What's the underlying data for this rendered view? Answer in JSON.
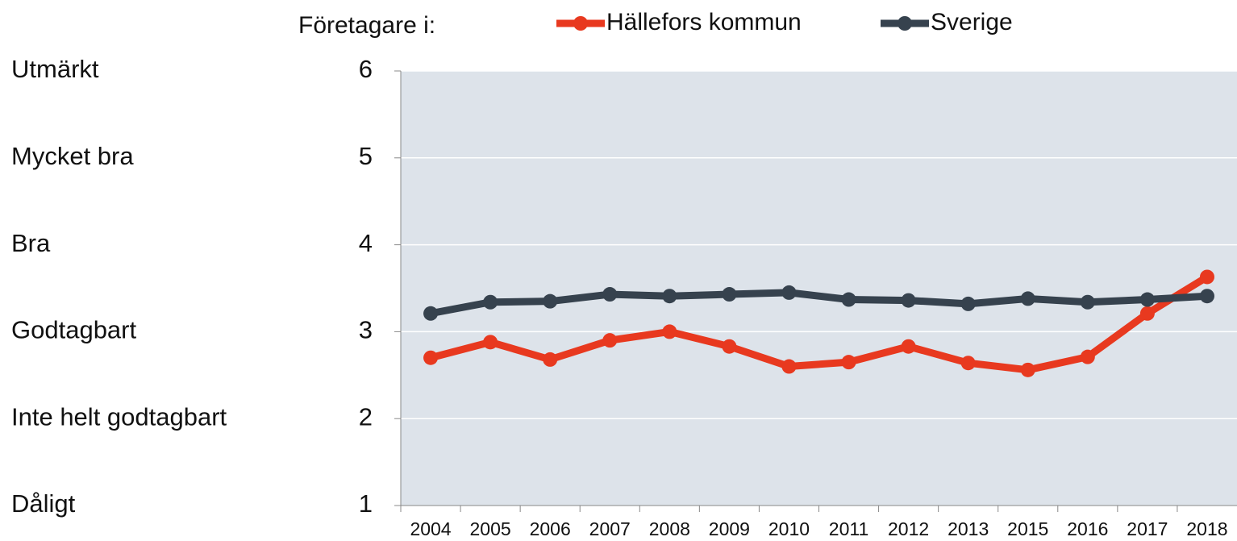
{
  "chart_data": {
    "type": "line",
    "legend_title": "Företagare i:",
    "categories": [
      "2004",
      "2005",
      "2006",
      "2007",
      "2008",
      "2009",
      "2010",
      "2011",
      "2012",
      "2013",
      "2015",
      "2016",
      "2017",
      "2018"
    ],
    "series": [
      {
        "name": "Hällefors kommun",
        "color": "#e8391f",
        "values": [
          2.7,
          2.88,
          2.68,
          2.9,
          3.0,
          2.83,
          2.6,
          2.65,
          2.83,
          2.64,
          2.56,
          2.71,
          3.21,
          3.63
        ]
      },
      {
        "name": "Sverige",
        "color": "#36424e",
        "values": [
          3.21,
          3.34,
          3.35,
          3.43,
          3.41,
          3.43,
          3.45,
          3.37,
          3.36,
          3.32,
          3.38,
          3.34,
          3.37,
          3.41
        ]
      }
    ],
    "ylim": [
      1,
      6
    ],
    "yticks": [
      1,
      2,
      3,
      4,
      5,
      6
    ],
    "ytick_descriptions": [
      "Dåligt",
      "Inte helt godtagbart",
      "Godtagbart",
      "Bra",
      "Mycket bra",
      "Utmärkt"
    ],
    "grid": true,
    "legend": "top"
  }
}
